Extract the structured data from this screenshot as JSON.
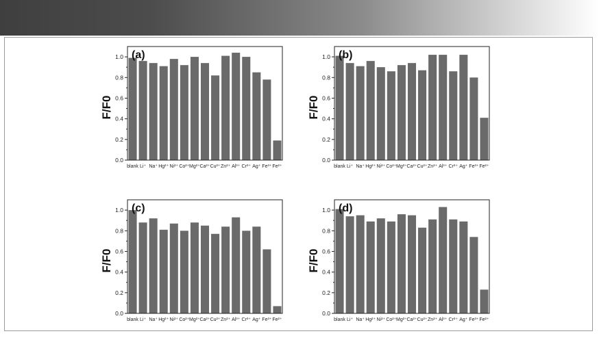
{
  "chart_data": [
    {
      "type": "bar",
      "panel_label": "(a)",
      "ylabel": "F/F0",
      "ylim": [
        0,
        1.1
      ],
      "yticks": [
        "0.0",
        "0.2",
        "0.4",
        "0.6",
        "0.8",
        "1.0"
      ],
      "bar_color": "#6a6a6a",
      "categories": [
        "blank",
        "Li⁺",
        "Na⁺",
        "Hg²⁺",
        "Ni²⁺",
        "Co²⁺",
        "Mg²⁺",
        "Ca²⁺",
        "Cu²⁺",
        "Zn²⁺",
        "Al³⁺",
        "Cr³⁺",
        "Ag⁺",
        "Fe³⁺",
        "Fe²⁺"
      ],
      "values": [
        0.99,
        0.96,
        0.94,
        0.91,
        0.98,
        0.92,
        1.0,
        0.94,
        0.82,
        1.01,
        1.04,
        1.0,
        0.85,
        0.78,
        0.19
      ]
    },
    {
      "type": "bar",
      "panel_label": "(b)",
      "ylabel": "F/F0",
      "ylim": [
        0,
        1.1
      ],
      "yticks": [
        "0.0",
        "0.2",
        "0.4",
        "0.6",
        "0.8",
        "1.0"
      ],
      "bar_color": "#6a6a6a",
      "categories": [
        "blank",
        "Li⁺",
        "Na⁺",
        "Hg²⁺",
        "Ni²⁺",
        "Co²⁺",
        "Mg²⁺",
        "Ca²⁺",
        "Cu²⁺",
        "Zn²⁺",
        "Al³⁺",
        "Cr³⁺",
        "Ag⁺",
        "Fe³⁺",
        "Fe²⁺"
      ],
      "values": [
        1.01,
        0.94,
        0.91,
        0.96,
        0.9,
        0.86,
        0.92,
        0.94,
        0.87,
        1.02,
        1.02,
        0.86,
        1.02,
        0.8,
        0.41
      ]
    },
    {
      "type": "bar",
      "panel_label": "(c)",
      "ylabel": "F/F0",
      "ylim": [
        0,
        1.1
      ],
      "yticks": [
        "0.0",
        "0.2",
        "0.4",
        "0.6",
        "0.8",
        "1.0"
      ],
      "bar_color": "#6a6a6a",
      "categories": [
        "blank",
        "Li⁺",
        "Na⁺",
        "Hg²⁺",
        "Ni²⁺",
        "Co²⁺",
        "Mg²⁺",
        "Ca²⁺",
        "Cu²⁺",
        "Zn²⁺",
        "Al³⁺",
        "Cr³⁺",
        "Ag⁺",
        "Fe³⁺",
        "Fe²⁺"
      ],
      "values": [
        1.0,
        0.88,
        0.92,
        0.81,
        0.87,
        0.8,
        0.88,
        0.85,
        0.77,
        0.84,
        0.93,
        0.8,
        0.84,
        0.62,
        0.07
      ]
    },
    {
      "type": "bar",
      "panel_label": "(d)",
      "ylabel": "F/F0",
      "ylim": [
        0,
        1.1
      ],
      "yticks": [
        "0.0",
        "0.2",
        "0.4",
        "0.6",
        "0.8",
        "1.0"
      ],
      "bar_color": "#6a6a6a",
      "categories": [
        "blank",
        "Li⁺",
        "Na⁺",
        "Hg²⁺",
        "Ni²⁺",
        "Co²⁺",
        "Mg²⁺",
        "Ca²⁺",
        "Cu²⁺",
        "Zn²⁺",
        "Al³⁺",
        "Cr³⁺",
        "Ag⁺",
        "Fe³⁺",
        "Fe²⁺"
      ],
      "values": [
        1.01,
        0.94,
        0.95,
        0.89,
        0.92,
        0.89,
        0.96,
        0.95,
        0.83,
        0.91,
        1.03,
        0.91,
        0.89,
        0.74,
        0.23
      ]
    }
  ]
}
